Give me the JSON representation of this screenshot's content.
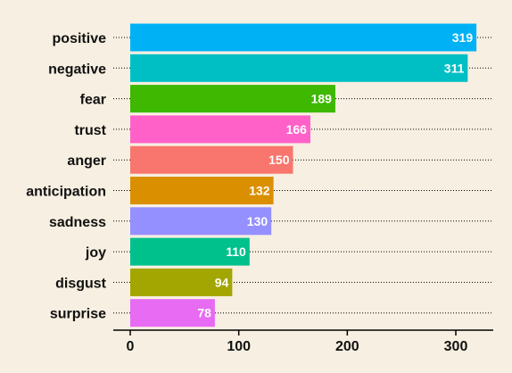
{
  "chart_data": {
    "type": "bar",
    "orientation": "horizontal",
    "title": "",
    "xlabel": "",
    "ylabel": "",
    "categories": [
      "positive",
      "negative",
      "fear",
      "trust",
      "anger",
      "anticipation",
      "sadness",
      "joy",
      "disgust",
      "surprise"
    ],
    "values": [
      319,
      311,
      189,
      166,
      150,
      132,
      130,
      110,
      94,
      78
    ],
    "colors": [
      "#00b1f6",
      "#00bfc4",
      "#3eb800",
      "#ff61c9",
      "#f8766d",
      "#da8f00",
      "#9590ff",
      "#00c08c",
      "#a3a500",
      "#e76bf3"
    ],
    "xlim": [
      0,
      335
    ],
    "x_ticks": [
      0,
      100,
      200,
      300
    ],
    "x_tick_labels": [
      "0",
      "100",
      "200",
      "300"
    ],
    "grid": "dotted horizontal guide lines",
    "legend": "none",
    "data_labels": "inside bar ends, white bold",
    "background": "#f7efe1"
  }
}
